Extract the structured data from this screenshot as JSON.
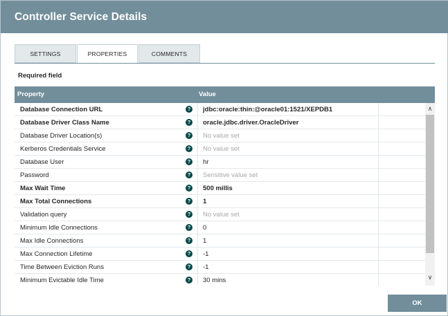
{
  "dialog": {
    "title": "Controller Service Details",
    "ok_label": "OK"
  },
  "tabs": [
    {
      "label": "SETTINGS",
      "active": false
    },
    {
      "label": "PROPERTIES",
      "active": true
    },
    {
      "label": "COMMENTS",
      "active": false
    }
  ],
  "required_label": "Required field",
  "table": {
    "columns": [
      "Property",
      "Value"
    ],
    "help_glyph": "?",
    "rows": [
      {
        "name": "Database Connection URL",
        "required": true,
        "value": "jdbc:oracle:thin:@oracle01:1521/XEPDB1",
        "placeholder": false
      },
      {
        "name": "Database Driver Class Name",
        "required": true,
        "value": "oracle.jdbc.driver.OracleDriver",
        "placeholder": false
      },
      {
        "name": "Database Driver Location(s)",
        "required": false,
        "value": "No value set",
        "placeholder": true
      },
      {
        "name": "Kerberos Credentials Service",
        "required": false,
        "value": "No value set",
        "placeholder": true
      },
      {
        "name": "Database User",
        "required": false,
        "value": "hr",
        "placeholder": false
      },
      {
        "name": "Password",
        "required": false,
        "value": "Sensitive value set",
        "placeholder": true
      },
      {
        "name": "Max Wait Time",
        "required": true,
        "value": "500 millis",
        "placeholder": false
      },
      {
        "name": "Max Total Connections",
        "required": true,
        "value": "1",
        "placeholder": false
      },
      {
        "name": "Validation query",
        "required": false,
        "value": "No value set",
        "placeholder": true
      },
      {
        "name": "Minimum Idle Connections",
        "required": false,
        "value": "0",
        "placeholder": false
      },
      {
        "name": "Max Idle Connections",
        "required": false,
        "value": "1",
        "placeholder": false
      },
      {
        "name": "Max Connection Lifetime",
        "required": false,
        "value": "-1",
        "placeholder": false
      },
      {
        "name": "Time Between Eviction Runs",
        "required": false,
        "value": "-1",
        "placeholder": false
      },
      {
        "name": "Minimum Evictable Idle Time",
        "required": false,
        "value": "30 mins",
        "placeholder": false
      }
    ]
  },
  "scrollbar": {
    "up_glyph": "∧",
    "down_glyph": "∨"
  },
  "colors": {
    "header": "#728e9b",
    "help_icon": "#004849",
    "placeholder_text": "#a8a8a8"
  }
}
